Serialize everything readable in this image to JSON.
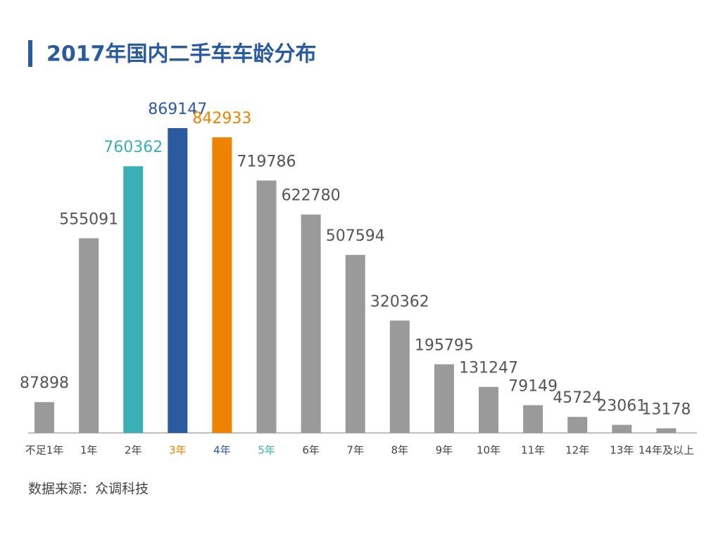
{
  "chart_data": {
    "type": "bar",
    "title": "2017年国内二手车车龄分布",
    "source": "数据来源：众调科技",
    "categories": [
      "不足1年",
      "1年",
      "2年",
      "3年",
      "4年",
      "5年",
      "6年",
      "7年",
      "8年",
      "9年",
      "10年",
      "11年",
      "12年",
      "13年",
      "14年及以上"
    ],
    "values": [
      87898,
      555091,
      760362,
      869147,
      842933,
      719786,
      622780,
      507594,
      320362,
      195795,
      131247,
      79149,
      45724,
      23061,
      13178
    ],
    "bar_colors": [
      "#9a9a9a",
      "#9a9a9a",
      "#3aafb5",
      "#2a5aa0",
      "#ef8200",
      "#9a9a9a",
      "#9a9a9a",
      "#9a9a9a",
      "#9a9a9a",
      "#9a9a9a",
      "#9a9a9a",
      "#9a9a9a",
      "#9a9a9a",
      "#9a9a9a",
      "#9a9a9a"
    ],
    "category_label_colors": [
      "#444444",
      "#444444",
      "#444444",
      "#ef8200",
      "#2a5aa0",
      "#3aafb5",
      "#444444",
      "#444444",
      "#444444",
      "#444444",
      "#444444",
      "#444444",
      "#444444",
      "#444444",
      "#444444"
    ]
  }
}
